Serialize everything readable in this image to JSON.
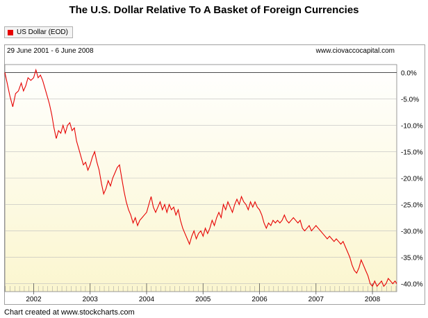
{
  "title": "The U.S. Dollar Relative To A Basket of Foreign Currencies",
  "legend": {
    "label": "US Dollar (EOD)",
    "color": "#e60000"
  },
  "date_range": "29 June 2001 - 6 June 2008",
  "watermark": "www.ciovaccocapital.com",
  "credit": "Chart created at www.stockcharts.com",
  "chart_data": {
    "type": "line",
    "title": "The U.S. Dollar Relative To A Basket of Foreign Currencies",
    "xlabel": "",
    "ylabel": "",
    "x_range": [
      2001.49,
      2008.43
    ],
    "ylim": [
      -41.5,
      1.5
    ],
    "yticks": [
      0,
      -5,
      -10,
      -15,
      -20,
      -25,
      -30,
      -35,
      -40
    ],
    "ytick_labels": [
      "0.0%",
      "-5.0%",
      "-10.0%",
      "-15.0%",
      "-20.0%",
      "-25.0%",
      "-30.0%",
      "-35.0%",
      "-40.0%"
    ],
    "xticks": [
      2002,
      2003,
      2004,
      2005,
      2006,
      2007,
      2008
    ],
    "xtick_labels": [
      "2002",
      "2003",
      "2004",
      "2005",
      "2006",
      "2007",
      "2008"
    ],
    "grid": true,
    "legend_position": "top-left",
    "series": [
      {
        "name": "US Dollar (EOD)",
        "color": "#e60000",
        "points": [
          [
            2001.49,
            0.0
          ],
          [
            2001.53,
            -2.0
          ],
          [
            2001.58,
            -4.5
          ],
          [
            2001.63,
            -6.5
          ],
          [
            2001.68,
            -4.0
          ],
          [
            2001.73,
            -3.5
          ],
          [
            2001.78,
            -2.0
          ],
          [
            2001.82,
            -3.5
          ],
          [
            2001.86,
            -2.5
          ],
          [
            2001.9,
            -1.0
          ],
          [
            2001.95,
            -1.5
          ],
          [
            2002.0,
            -1.0
          ],
          [
            2002.04,
            0.5
          ],
          [
            2002.08,
            -1.0
          ],
          [
            2002.12,
            -0.5
          ],
          [
            2002.16,
            -1.5
          ],
          [
            2002.2,
            -3.0
          ],
          [
            2002.24,
            -4.5
          ],
          [
            2002.28,
            -6.0
          ],
          [
            2002.32,
            -8.0
          ],
          [
            2002.36,
            -10.5
          ],
          [
            2002.4,
            -12.5
          ],
          [
            2002.44,
            -11.0
          ],
          [
            2002.48,
            -11.5
          ],
          [
            2002.52,
            -10.0
          ],
          [
            2002.56,
            -11.5
          ],
          [
            2002.6,
            -10.0
          ],
          [
            2002.64,
            -9.5
          ],
          [
            2002.68,
            -11.0
          ],
          [
            2002.72,
            -10.5
          ],
          [
            2002.76,
            -13.0
          ],
          [
            2002.8,
            -14.5
          ],
          [
            2002.84,
            -16.0
          ],
          [
            2002.88,
            -17.5
          ],
          [
            2002.92,
            -17.0
          ],
          [
            2002.96,
            -18.5
          ],
          [
            2003.0,
            -17.5
          ],
          [
            2003.04,
            -16.0
          ],
          [
            2003.08,
            -15.0
          ],
          [
            2003.12,
            -17.0
          ],
          [
            2003.16,
            -18.5
          ],
          [
            2003.2,
            -21.0
          ],
          [
            2003.24,
            -23.0
          ],
          [
            2003.28,
            -22.0
          ],
          [
            2003.32,
            -20.5
          ],
          [
            2003.36,
            -21.5
          ],
          [
            2003.4,
            -20.0
          ],
          [
            2003.44,
            -19.0
          ],
          [
            2003.48,
            -18.0
          ],
          [
            2003.52,
            -17.5
          ],
          [
            2003.56,
            -20.0
          ],
          [
            2003.6,
            -22.5
          ],
          [
            2003.64,
            -24.5
          ],
          [
            2003.68,
            -26.0
          ],
          [
            2003.72,
            -27.0
          ],
          [
            2003.76,
            -28.5
          ],
          [
            2003.8,
            -27.5
          ],
          [
            2003.84,
            -29.0
          ],
          [
            2003.88,
            -28.0
          ],
          [
            2003.92,
            -27.5
          ],
          [
            2003.96,
            -27.0
          ],
          [
            2004.0,
            -26.5
          ],
          [
            2004.04,
            -25.0
          ],
          [
            2004.08,
            -23.5
          ],
          [
            2004.12,
            -25.5
          ],
          [
            2004.16,
            -26.5
          ],
          [
            2004.2,
            -25.5
          ],
          [
            2004.24,
            -24.5
          ],
          [
            2004.28,
            -26.0
          ],
          [
            2004.32,
            -25.0
          ],
          [
            2004.36,
            -26.5
          ],
          [
            2004.4,
            -25.0
          ],
          [
            2004.44,
            -26.0
          ],
          [
            2004.48,
            -25.5
          ],
          [
            2004.52,
            -27.0
          ],
          [
            2004.56,
            -26.0
          ],
          [
            2004.6,
            -28.0
          ],
          [
            2004.64,
            -29.5
          ],
          [
            2004.68,
            -30.5
          ],
          [
            2004.72,
            -31.5
          ],
          [
            2004.76,
            -32.5
          ],
          [
            2004.8,
            -31.0
          ],
          [
            2004.84,
            -30.0
          ],
          [
            2004.88,
            -31.5
          ],
          [
            2004.92,
            -30.5
          ],
          [
            2004.96,
            -30.0
          ],
          [
            2005.0,
            -31.0
          ],
          [
            2005.04,
            -29.5
          ],
          [
            2005.08,
            -30.5
          ],
          [
            2005.12,
            -29.5
          ],
          [
            2005.16,
            -28.0
          ],
          [
            2005.2,
            -29.0
          ],
          [
            2005.24,
            -27.5
          ],
          [
            2005.28,
            -26.5
          ],
          [
            2005.32,
            -27.5
          ],
          [
            2005.36,
            -25.0
          ],
          [
            2005.4,
            -26.0
          ],
          [
            2005.44,
            -24.5
          ],
          [
            2005.48,
            -25.5
          ],
          [
            2005.52,
            -26.5
          ],
          [
            2005.56,
            -25.0
          ],
          [
            2005.6,
            -24.0
          ],
          [
            2005.64,
            -25.0
          ],
          [
            2005.68,
            -23.5
          ],
          [
            2005.72,
            -24.5
          ],
          [
            2005.76,
            -25.0
          ],
          [
            2005.8,
            -26.0
          ],
          [
            2005.84,
            -24.5
          ],
          [
            2005.88,
            -25.5
          ],
          [
            2005.92,
            -24.5
          ],
          [
            2005.96,
            -25.5
          ],
          [
            2006.0,
            -26.0
          ],
          [
            2006.04,
            -27.0
          ],
          [
            2006.08,
            -28.5
          ],
          [
            2006.12,
            -29.5
          ],
          [
            2006.16,
            -28.5
          ],
          [
            2006.2,
            -29.0
          ],
          [
            2006.24,
            -28.0
          ],
          [
            2006.28,
            -28.5
          ],
          [
            2006.32,
            -28.0
          ],
          [
            2006.36,
            -28.5
          ],
          [
            2006.4,
            -28.0
          ],
          [
            2006.44,
            -27.0
          ],
          [
            2006.48,
            -28.0
          ],
          [
            2006.52,
            -28.5
          ],
          [
            2006.56,
            -28.0
          ],
          [
            2006.6,
            -27.5
          ],
          [
            2006.64,
            -28.0
          ],
          [
            2006.68,
            -28.5
          ],
          [
            2006.72,
            -28.0
          ],
          [
            2006.76,
            -29.5
          ],
          [
            2006.8,
            -30.0
          ],
          [
            2006.84,
            -29.5
          ],
          [
            2006.88,
            -29.0
          ],
          [
            2006.92,
            -30.0
          ],
          [
            2006.96,
            -29.5
          ],
          [
            2007.0,
            -29.0
          ],
          [
            2007.04,
            -29.5
          ],
          [
            2007.08,
            -30.0
          ],
          [
            2007.12,
            -30.5
          ],
          [
            2007.16,
            -31.0
          ],
          [
            2007.2,
            -31.5
          ],
          [
            2007.24,
            -31.0
          ],
          [
            2007.28,
            -31.5
          ],
          [
            2007.32,
            -32.0
          ],
          [
            2007.36,
            -31.5
          ],
          [
            2007.4,
            -32.0
          ],
          [
            2007.44,
            -32.5
          ],
          [
            2007.48,
            -32.0
          ],
          [
            2007.52,
            -33.0
          ],
          [
            2007.56,
            -34.0
          ],
          [
            2007.6,
            -35.0
          ],
          [
            2007.64,
            -36.5
          ],
          [
            2007.68,
            -37.5
          ],
          [
            2007.72,
            -38.0
          ],
          [
            2007.76,
            -37.0
          ],
          [
            2007.8,
            -35.5
          ],
          [
            2007.84,
            -36.5
          ],
          [
            2007.88,
            -37.5
          ],
          [
            2007.92,
            -38.5
          ],
          [
            2007.96,
            -40.0
          ],
          [
            2008.0,
            -40.5
          ],
          [
            2008.04,
            -39.5
          ],
          [
            2008.08,
            -40.5
          ],
          [
            2008.12,
            -40.0
          ],
          [
            2008.16,
            -39.5
          ],
          [
            2008.2,
            -40.5
          ],
          [
            2008.24,
            -40.0
          ],
          [
            2008.28,
            -39.0
          ],
          [
            2008.32,
            -39.5
          ],
          [
            2008.36,
            -40.0
          ],
          [
            2008.4,
            -39.5
          ],
          [
            2008.43,
            -40.0
          ]
        ]
      }
    ]
  }
}
